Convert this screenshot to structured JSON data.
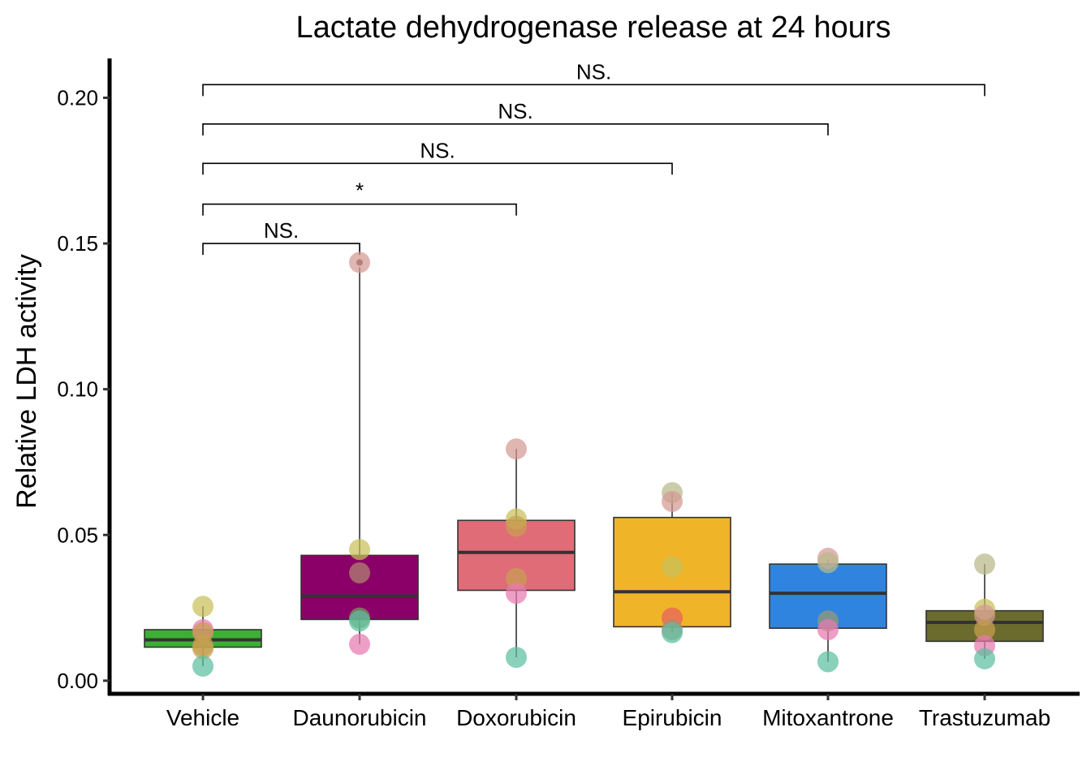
{
  "chart_data": {
    "type": "box",
    "title": "Lactate dehydrogenase release at 24 hours",
    "xlabel": "",
    "ylabel": "Relative LDH activity",
    "ylim": [
      -0.0045,
      0.2135
    ],
    "yticks": [
      0.0,
      0.05,
      0.1,
      0.15,
      0.2
    ],
    "ytick_labels": [
      "0.00",
      "0.05",
      "0.10",
      "0.15",
      "0.20"
    ],
    "grid": false,
    "legend": "none",
    "categories": [
      "Vehicle",
      "Daunorubicin",
      "Doxorubicin",
      "Epirubicin",
      "Mitoxantrone",
      "Trastuzumab"
    ],
    "boxes": [
      {
        "category": "Vehicle",
        "fill": "#3cb034",
        "whisker_low": 0.005,
        "q1": 0.0115,
        "median": 0.014,
        "q3": 0.0175,
        "whisker_high": 0.0255,
        "outliers": []
      },
      {
        "category": "Daunorubicin",
        "fill": "#8b0068",
        "whisker_low": 0.0125,
        "q1": 0.021,
        "median": 0.029,
        "q3": 0.043,
        "whisker_high": 0.045,
        "outliers": [
          0.1435
        ]
      },
      {
        "category": "Doxorubicin",
        "fill": "#e06c78",
        "whisker_low": 0.008,
        "q1": 0.031,
        "median": 0.044,
        "q3": 0.055,
        "whisker_high": 0.0795,
        "outliers": []
      },
      {
        "category": "Epirubicin",
        "fill": "#f0b429",
        "whisker_low": 0.0165,
        "q1": 0.0185,
        "median": 0.0305,
        "q3": 0.056,
        "whisker_high": 0.0645,
        "outliers": []
      },
      {
        "category": "Mitoxantrone",
        "fill": "#2f84e0",
        "whisker_low": 0.0065,
        "q1": 0.018,
        "median": 0.03,
        "q3": 0.04,
        "whisker_high": 0.0415,
        "outliers": []
      },
      {
        "category": "Trastuzumab",
        "fill": "#6b6b2e",
        "whisker_low": 0.0075,
        "q1": 0.0135,
        "median": 0.02,
        "q3": 0.024,
        "whisker_high": 0.04,
        "outliers": []
      }
    ],
    "points": [
      {
        "category": "Vehicle",
        "values": [
          0.0255,
          0.0175,
          0.0165,
          0.012,
          0.011,
          0.005
        ],
        "colors": [
          "#c8c05a",
          "#e87ab0",
          "#c8a050",
          "#c8a050",
          "#c8a050",
          "#5bbfa0"
        ]
      },
      {
        "category": "Daunorubicin",
        "values": [
          0.1435,
          0.045,
          0.037,
          0.0215,
          0.0205,
          0.0125
        ],
        "colors": [
          "#d49a94",
          "#c8c05a",
          "#b08870",
          "#7a9e5e",
          "#5bbfa0",
          "#e87ab0"
        ]
      },
      {
        "category": "Doxorubicin",
        "values": [
          0.0795,
          0.0555,
          0.053,
          0.035,
          0.03,
          0.008
        ],
        "colors": [
          "#d49a94",
          "#c8c05a",
          "#c8a050",
          "#c8a050",
          "#e87ab0",
          "#5bbfa0"
        ]
      },
      {
        "category": "Epirubicin",
        "values": [
          0.0645,
          0.0615,
          0.039,
          0.0215,
          0.0175,
          0.0165
        ],
        "colors": [
          "#b8b88a",
          "#d49a94",
          "#c8c05a",
          "#e86060",
          "#b08870",
          "#5bbfa0"
        ]
      },
      {
        "category": "Mitoxantrone",
        "values": [
          0.042,
          0.0405,
          0.0205,
          0.0175,
          0.0065
        ],
        "colors": [
          "#d49a94",
          "#b8b88a",
          "#9a9a70",
          "#e87ab0",
          "#5bbfa0"
        ]
      },
      {
        "category": "Trastuzumab",
        "values": [
          0.04,
          0.0245,
          0.0225,
          0.0175,
          0.012,
          0.0075
        ],
        "colors": [
          "#b8b88a",
          "#c8c05a",
          "#d49a94",
          "#c8a050",
          "#e87ab0",
          "#5bbfa0"
        ]
      }
    ],
    "comparisons": [
      {
        "from": "Vehicle",
        "to": "Daunorubicin",
        "y": 0.15,
        "label": "NS."
      },
      {
        "from": "Vehicle",
        "to": "Doxorubicin",
        "y": 0.1635,
        "label": "*"
      },
      {
        "from": "Vehicle",
        "to": "Epirubicin",
        "y": 0.1775,
        "label": "NS."
      },
      {
        "from": "Vehicle",
        "to": "Mitoxantrone",
        "y": 0.191,
        "label": "NS."
      },
      {
        "from": "Vehicle",
        "to": "Trastuzumab",
        "y": 0.2045,
        "label": "NS."
      }
    ],
    "styles": {
      "box_edge": "#333333",
      "median_line": "#333333",
      "outlier_dot": "#6b3a3a",
      "axis_color": "#000000"
    }
  }
}
